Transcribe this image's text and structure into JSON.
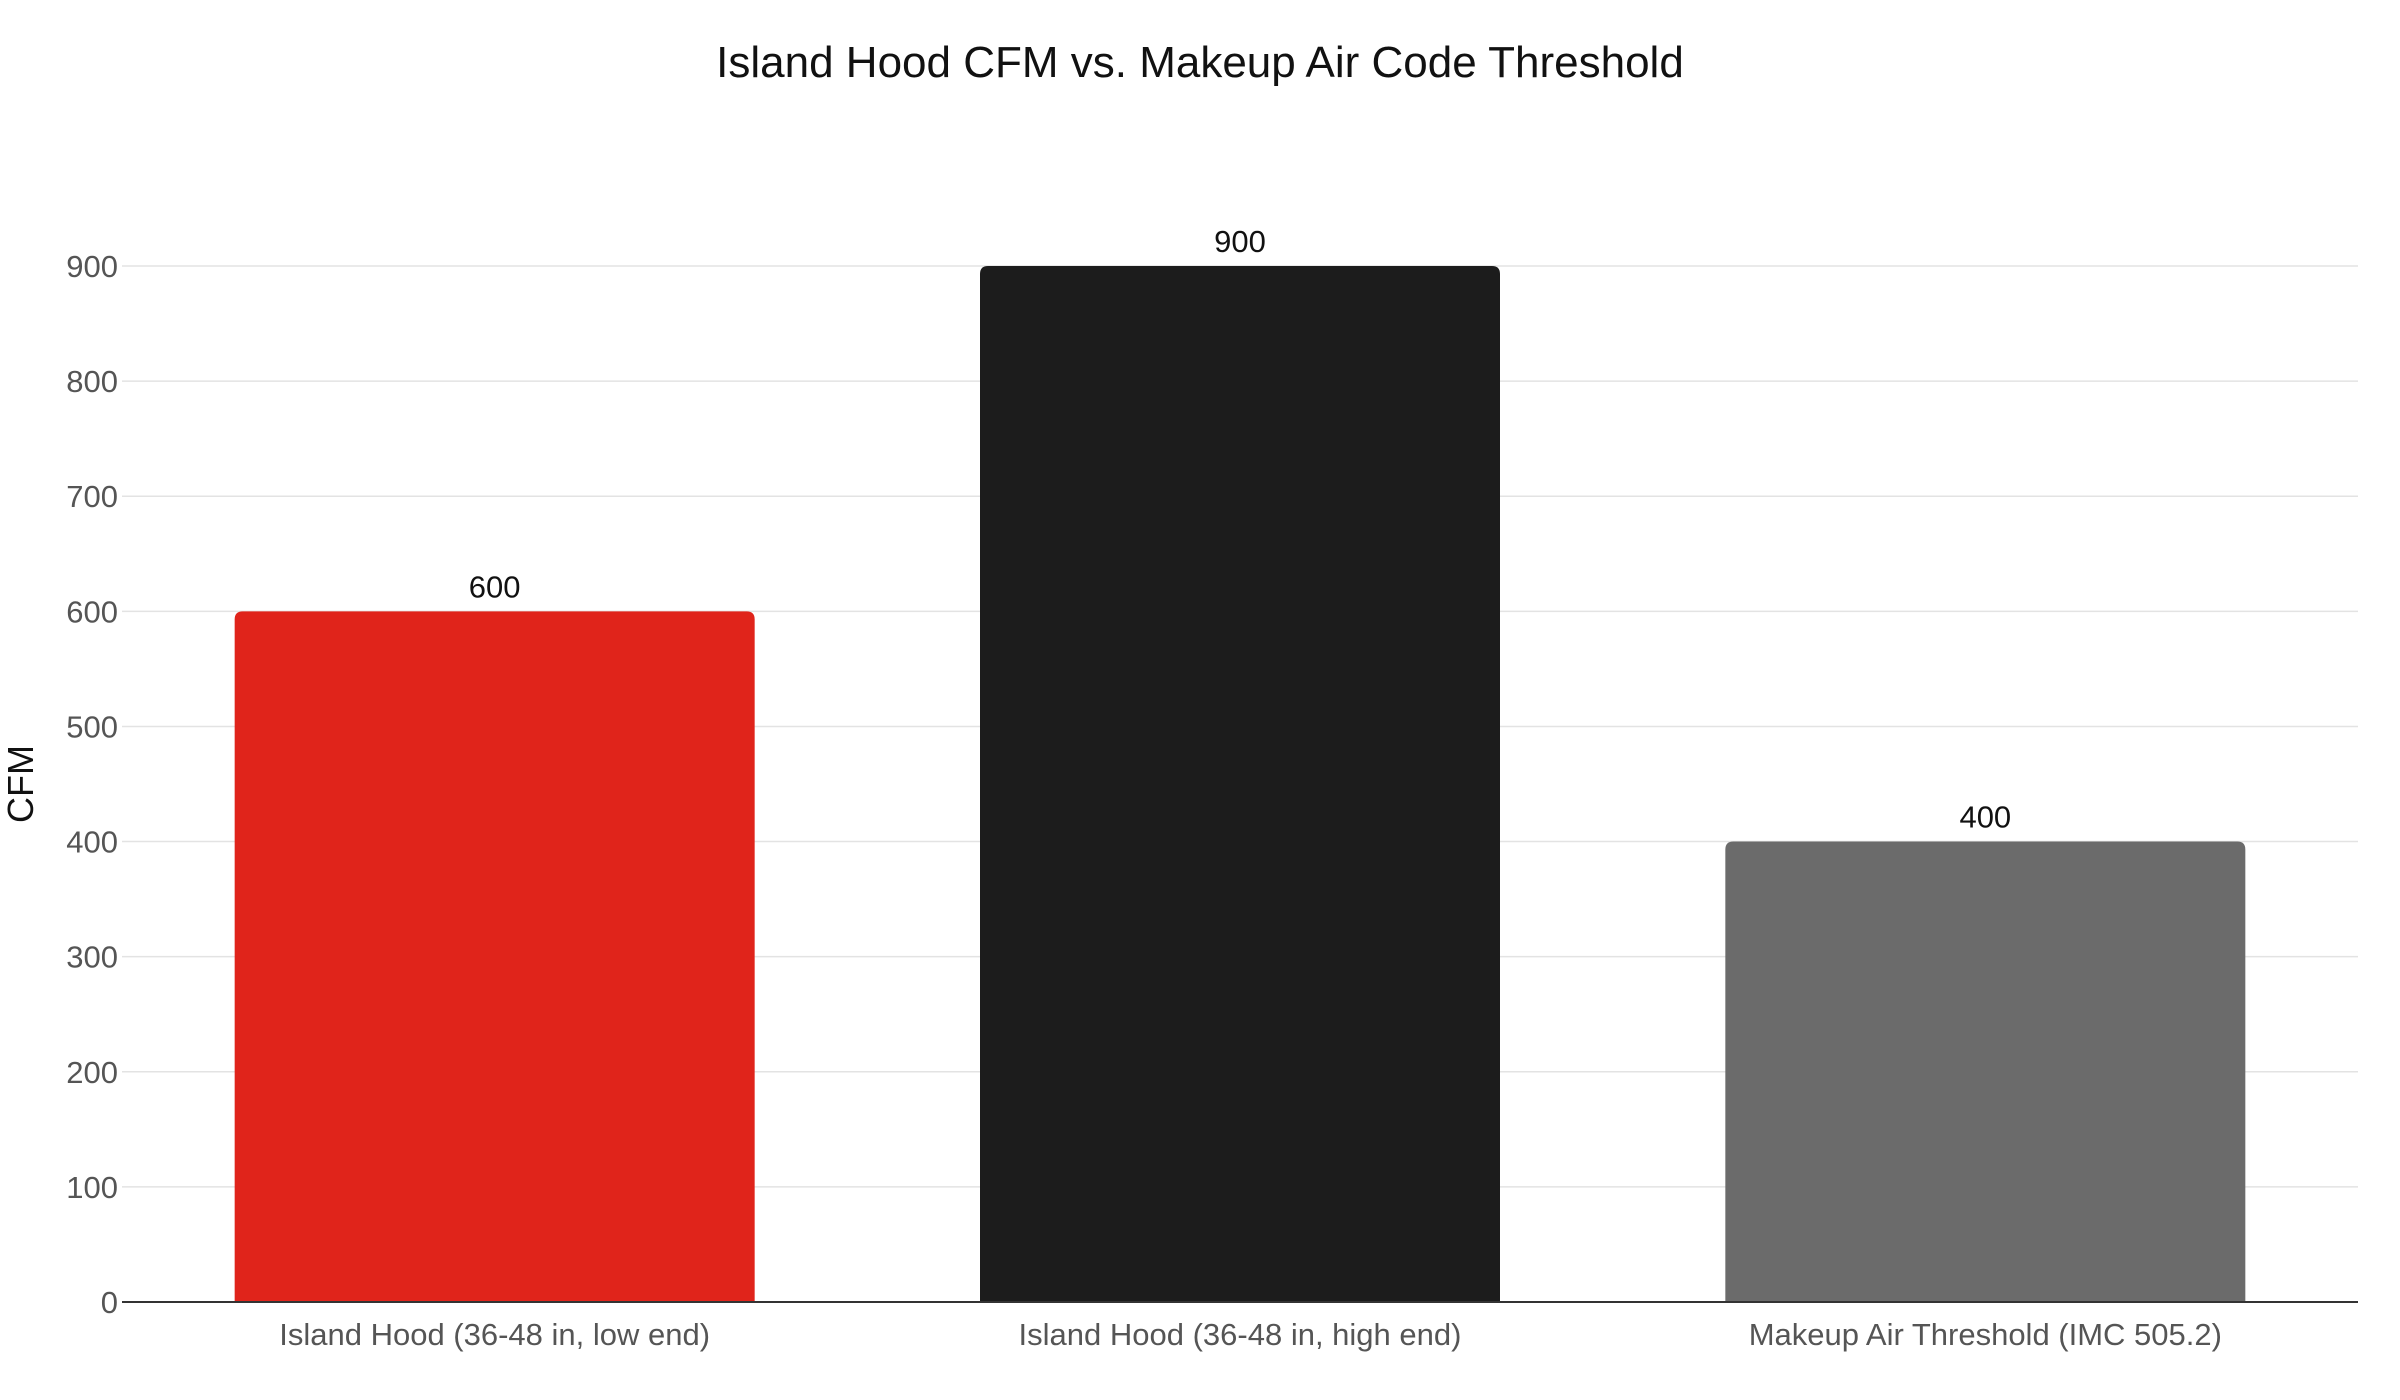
{
  "chart_data": {
    "type": "bar",
    "title": "Island Hood CFM vs. Makeup Air Code Threshold",
    "xlabel": "",
    "ylabel": "CFM",
    "categories": [
      "Island Hood (36-48 in, low end)",
      "Island Hood (36-48 in, high end)",
      "Makeup Air Threshold (IMC 505.2)"
    ],
    "values": [
      600,
      900,
      400
    ],
    "data_labels": [
      "600",
      "900",
      "400"
    ],
    "bar_colors": [
      "#e0241b",
      "#1c1c1c",
      "#6b6b6b"
    ],
    "ylim": [
      0,
      900
    ],
    "yticks": [
      0,
      100,
      200,
      300,
      400,
      500,
      600,
      700,
      800,
      900
    ],
    "ytick_labels": [
      "0",
      "100",
      "200",
      "300",
      "400",
      "500",
      "600",
      "700",
      "800",
      "900"
    ],
    "grid": true,
    "legend": "none"
  }
}
